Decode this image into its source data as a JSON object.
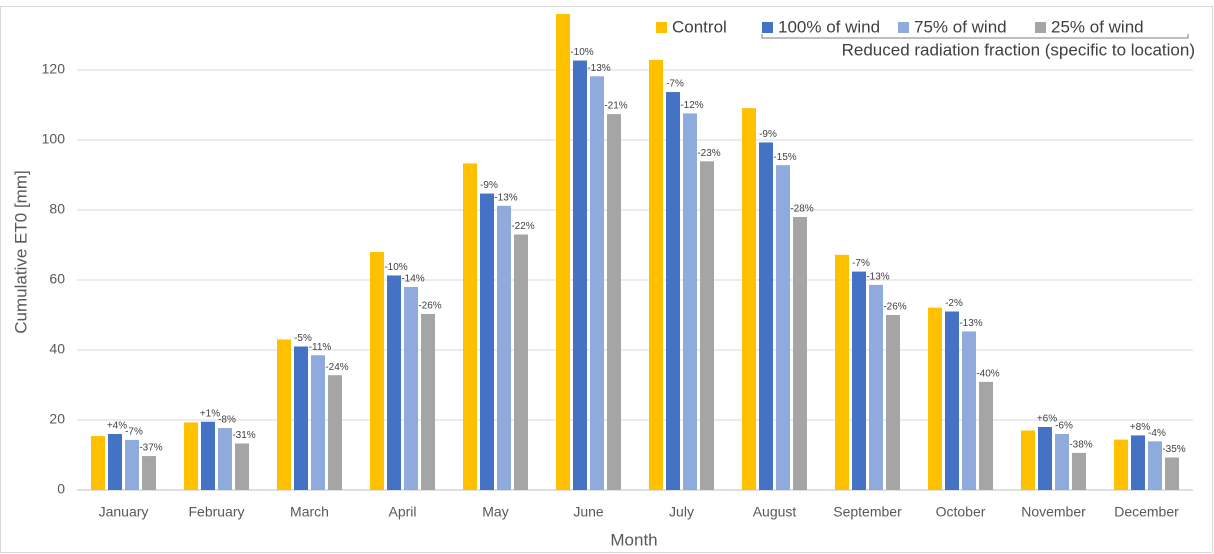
{
  "chart_data": {
    "type": "bar",
    "y_label": "Cumulative ET0 [mm]",
    "x_label": "Month",
    "legend_subtitle": "Reduced radiation fraction (specific to location)",
    "categories": [
      "January",
      "February",
      "March",
      "April",
      "May",
      "June",
      "July",
      "August",
      "September",
      "October",
      "November",
      "December"
    ],
    "series": [
      {
        "name": "Control",
        "color": "#FFC000",
        "values": [
          15.4,
          19.3,
          43,
          68,
          93.3,
          136,
          122.9,
          109.1,
          67.2,
          52.1,
          17,
          14.4
        ]
      },
      {
        "name": "100% of wind",
        "color": "#4472C4",
        "values": [
          16,
          19.5,
          41,
          61.3,
          84.7,
          122.7,
          113.7,
          99.3,
          62.4,
          51,
          18,
          15.6
        ],
        "change_labels": [
          "+4%",
          "+1%",
          "-5%",
          "-10%",
          "-9%",
          "-10%",
          "-7%",
          "-9%",
          "-7%",
          "-2%",
          "+6%",
          "+8%"
        ]
      },
      {
        "name": "75% of wind",
        "color": "#8FAADC",
        "values": [
          14.3,
          17.7,
          38.5,
          58,
          81.2,
          118.2,
          107.6,
          92.8,
          58.6,
          45.3,
          16,
          13.9
        ],
        "change_labels": [
          "-7%",
          "-8%",
          "-11%",
          "-14%",
          "-13%",
          "-13%",
          "-12%",
          "-15%",
          "-13%",
          "-13%",
          "-6%",
          "-4%"
        ]
      },
      {
        "name": "25% of wind",
        "color": "#A5A5A5",
        "values": [
          9.7,
          13.3,
          32.8,
          50.3,
          73,
          107.4,
          93.9,
          78,
          50,
          30.9,
          10.6,
          9.3
        ],
        "change_labels": [
          "-37%",
          "-31%",
          "-24%",
          "-26%",
          "-22%",
          "-21%",
          "-23%",
          "-28%",
          "-26%",
          "-40%",
          "-38%",
          "-35%"
        ]
      }
    ],
    "ylim": [
      0,
      136
    ],
    "yticks": [
      0,
      20,
      40,
      60,
      80,
      100,
      120
    ],
    "grid": true,
    "legend": "top-right"
  }
}
